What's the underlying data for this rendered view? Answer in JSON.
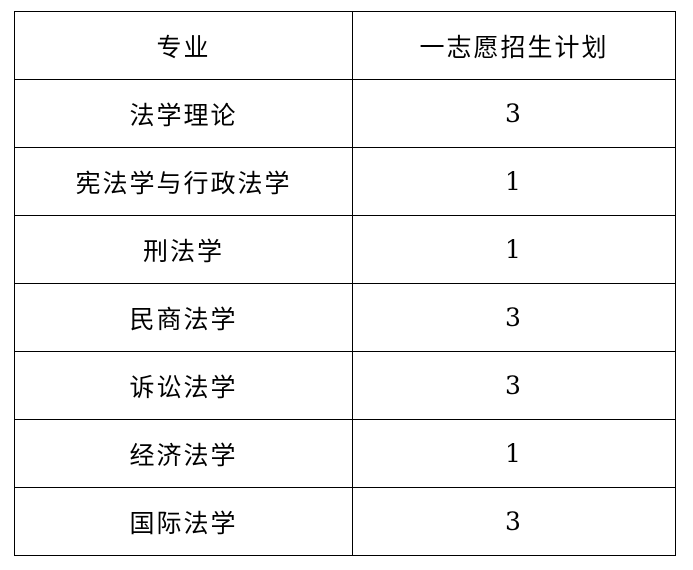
{
  "table": {
    "headers": [
      "专业",
      "一志愿招生计划"
    ],
    "rows": [
      [
        "法学理论",
        "3"
      ],
      [
        "宪法学与行政法学",
        "1"
      ],
      [
        "刑法学",
        "1"
      ],
      [
        "民商法学",
        "3"
      ],
      [
        "诉讼法学",
        "3"
      ],
      [
        "经济法学",
        "1"
      ],
      [
        "国际法学",
        "3"
      ]
    ]
  }
}
